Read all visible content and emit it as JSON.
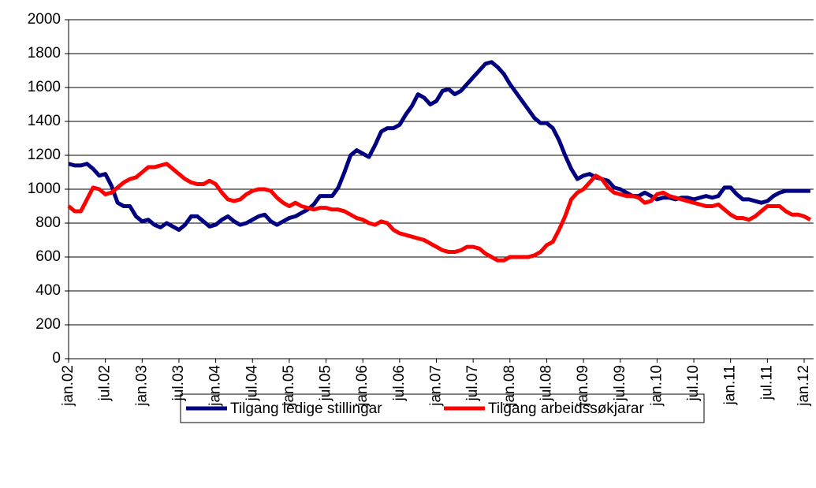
{
  "chart_data": {
    "type": "line",
    "categories": [
      "jan.02",
      null,
      null,
      null,
      null,
      null,
      "jul.02",
      null,
      null,
      null,
      null,
      null,
      "jan.03",
      null,
      null,
      null,
      null,
      null,
      "jul.03",
      null,
      null,
      null,
      null,
      null,
      "jan.04",
      null,
      null,
      null,
      null,
      null,
      "jul.04",
      null,
      null,
      null,
      null,
      null,
      "jan.05",
      null,
      null,
      null,
      null,
      null,
      "jul.05",
      null,
      null,
      null,
      null,
      null,
      "jan.06",
      null,
      null,
      null,
      null,
      null,
      "jul.06",
      null,
      null,
      null,
      null,
      null,
      "jan.07",
      null,
      null,
      null,
      null,
      null,
      "jul.07",
      null,
      null,
      null,
      null,
      null,
      "jan.08",
      null,
      null,
      null,
      null,
      null,
      "jul.08",
      null,
      null,
      null,
      null,
      null,
      "jan.09",
      null,
      null,
      null,
      null,
      null,
      "jul.09",
      null,
      null,
      null,
      null,
      null,
      "jan.10",
      null,
      null,
      null,
      null,
      null,
      "jul.10",
      null,
      null,
      null,
      null,
      null,
      "jan.11",
      null,
      null,
      null,
      null,
      null,
      "jul.11",
      null,
      null,
      null,
      null,
      null,
      "jan.12",
      null
    ],
    "series": [
      {
        "name": "Tilgang ledige stillingar",
        "color": "#000080",
        "values": [
          1150,
          1140,
          1140,
          1150,
          1120,
          1080,
          1090,
          1020,
          920,
          900,
          900,
          840,
          810,
          820,
          790,
          775,
          800,
          780,
          760,
          790,
          840,
          840,
          810,
          780,
          790,
          820,
          840,
          810,
          790,
          800,
          820,
          840,
          850,
          810,
          790,
          810,
          830,
          840,
          860,
          880,
          910,
          960,
          960,
          960,
          1010,
          1100,
          1200,
          1230,
          1210,
          1190,
          1260,
          1340,
          1360,
          1360,
          1380,
          1440,
          1490,
          1560,
          1540,
          1500,
          1520,
          1580,
          1590,
          1560,
          1580,
          1620,
          1660,
          1700,
          1740,
          1750,
          1720,
          1680,
          1620,
          1570,
          1520,
          1470,
          1420,
          1390,
          1390,
          1360,
          1290,
          1200,
          1120,
          1060,
          1080,
          1090,
          1070,
          1060,
          1050,
          1010,
          1000,
          980,
          960,
          960,
          980,
          960,
          940,
          950,
          950,
          940,
          950,
          950,
          940,
          950,
          960,
          950,
          960,
          1010,
          1010,
          970,
          940,
          940,
          930,
          920,
          930,
          960,
          980,
          990,
          990,
          990,
          990,
          990
        ]
      },
      {
        "name": "Tilgang arbeidssøkjarar",
        "color": "#ff0000",
        "values": [
          900,
          870,
          870,
          940,
          1010,
          1000,
          970,
          980,
          1010,
          1040,
          1060,
          1070,
          1100,
          1130,
          1130,
          1140,
          1150,
          1120,
          1090,
          1060,
          1040,
          1030,
          1030,
          1050,
          1030,
          980,
          940,
          930,
          940,
          970,
          990,
          1000,
          1000,
          990,
          950,
          920,
          900,
          920,
          900,
          890,
          880,
          890,
          890,
          880,
          880,
          870,
          850,
          830,
          820,
          800,
          790,
          810,
          800,
          760,
          740,
          730,
          720,
          710,
          700,
          680,
          660,
          640,
          630,
          630,
          640,
          660,
          660,
          650,
          620,
          600,
          580,
          580,
          600,
          600,
          600,
          600,
          610,
          630,
          670,
          690,
          760,
          840,
          940,
          980,
          1000,
          1040,
          1080,
          1060,
          1010,
          980,
          970,
          960,
          960,
          950,
          920,
          930,
          970,
          980,
          960,
          950,
          940,
          930,
          920,
          910,
          900,
          900,
          910,
          880,
          850,
          830,
          830,
          820,
          840,
          870,
          900,
          900,
          900,
          870,
          850,
          850,
          840,
          820
        ]
      }
    ],
    "ylim": [
      0,
      2000
    ],
    "yticks": [
      0,
      200,
      400,
      600,
      800,
      1000,
      1200,
      1400,
      1600,
      1800,
      2000
    ],
    "grid": true
  }
}
